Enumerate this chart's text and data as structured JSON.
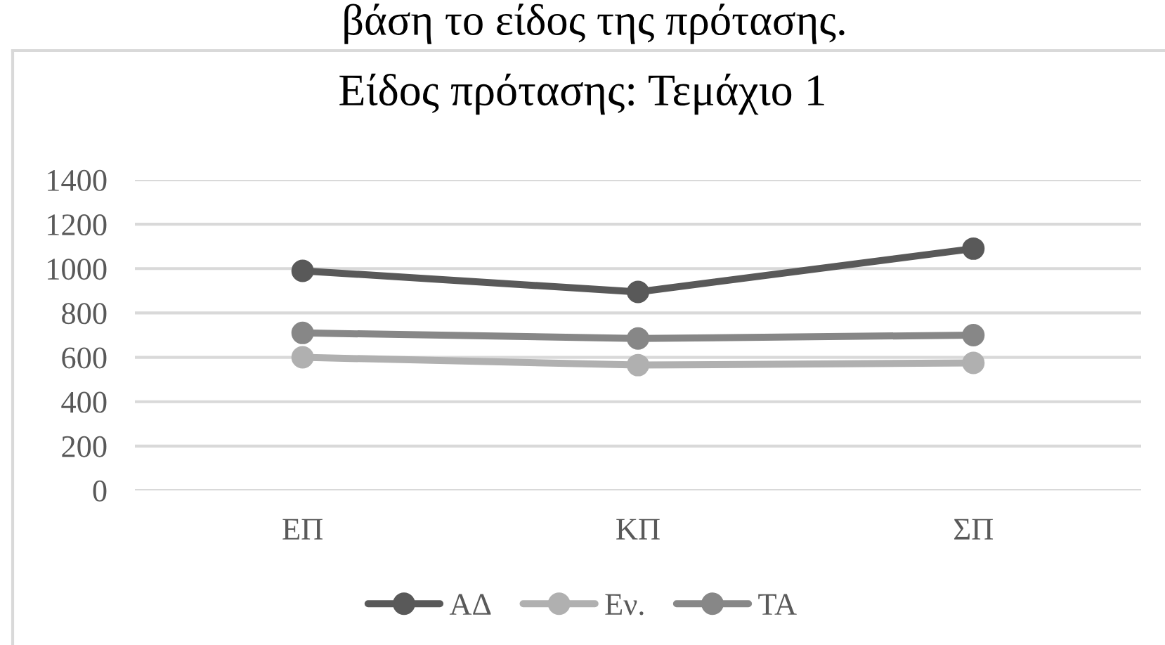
{
  "chart_data": {
    "type": "line",
    "title": "Είδος πρότασης: Τεμάχιο 1",
    "annotations": [
      "βάση το είδος της πρότασης."
    ],
    "categories": [
      "ΕΠ",
      "ΚΠ",
      "ΣΠ"
    ],
    "series": [
      {
        "name": "ΑΔ",
        "color": "#595959",
        "values": [
          990,
          895,
          1090
        ]
      },
      {
        "name": "Εν.",
        "color": "#b0b0b0",
        "values": [
          600,
          565,
          575
        ]
      },
      {
        "name": "ΤΑ",
        "color": "#878787",
        "values": [
          710,
          685,
          700
        ]
      }
    ],
    "ylim": [
      0,
      1400
    ],
    "yticks": [
      0,
      200,
      400,
      600,
      800,
      1000,
      1200,
      1400
    ],
    "grid": "y",
    "legend": "bottom",
    "marker": "circle",
    "line_style": "solid"
  }
}
